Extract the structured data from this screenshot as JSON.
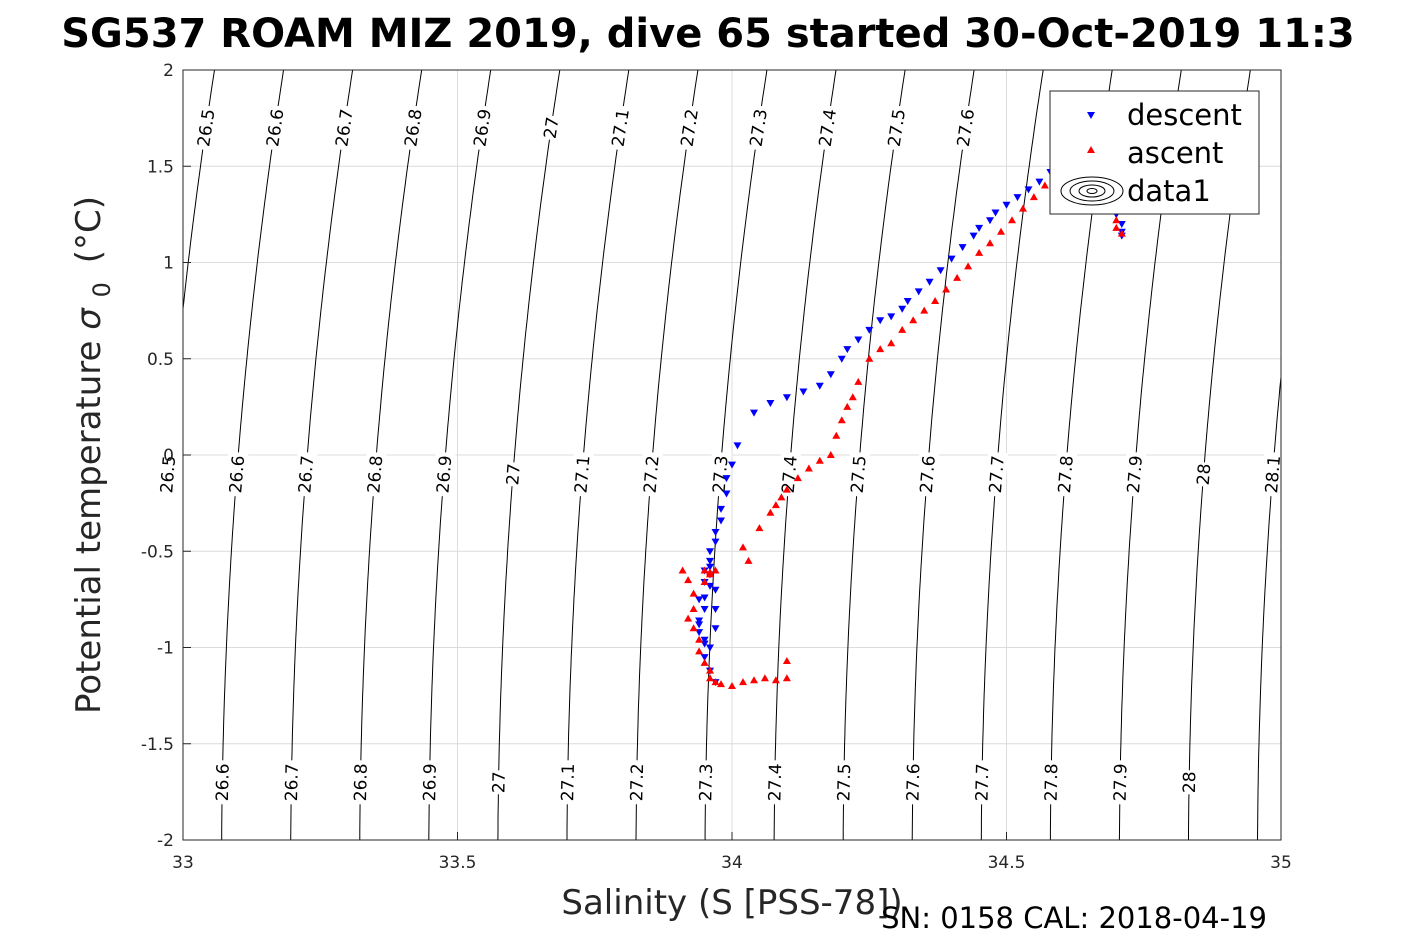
{
  "chart_data": {
    "type": "scatter",
    "title": "SG537 ROAM MIZ 2019, dive 65 started 30-Oct-2019 11:3",
    "xlabel": "Salinity (S [PSS-78])",
    "ylabel": "Potential temperature",
    "ylabel_units": "(°C)",
    "ylabel_symbol": "σ",
    "ylabel_subscript": "0",
    "footer": "SN: 0158  CAL: 2018-04-19",
    "xlim": [
      33,
      35
    ],
    "ylim": [
      -2,
      2
    ],
    "xticks": [
      33,
      33.5,
      34,
      34.5,
      35
    ],
    "xtick_labels": [
      "33",
      "33.5",
      "34",
      "34.5",
      "35"
    ],
    "yticks": [
      -2,
      -1.5,
      -1,
      -0.5,
      0,
      0.5,
      1,
      1.5,
      2
    ],
    "ytick_labels": [
      "-2",
      "-1.5",
      "-1",
      "-0.5",
      "0",
      "0.5",
      "1",
      "1.5",
      "2"
    ],
    "grid": true,
    "legend_position": "top-right",
    "legend": [
      "descent",
      "ascent",
      "data1"
    ],
    "colors": {
      "descent": "#0000ff",
      "ascent": "#ff0000",
      "contours": "#000000",
      "grid": "#dcdcdc"
    },
    "isopycnals": {
      "levels": [
        26.5,
        26.6,
        26.7,
        26.8,
        26.9,
        27.0,
        27.1,
        27.2,
        27.3,
        27.4,
        27.5,
        27.6,
        27.7,
        27.8,
        27.9,
        28.0,
        28.1
      ],
      "label_rows": [
        {
          "theta": 1.7,
          "labels": [
            "26.5",
            "26.6",
            "26.7",
            "26.8",
            "26.9",
            "27",
            "27.1",
            "27.2",
            "27.3",
            "27.4",
            "27.5",
            "27.6",
            "28"
          ]
        },
        {
          "theta": -0.1,
          "labels": [
            "26.5",
            "26.6",
            "26.7",
            "26.8",
            "26.9",
            "27",
            "27.1",
            "27.2",
            "27.3",
            "27.4",
            "27.5",
            "27.6",
            "27.7",
            "27.8",
            "27.9",
            "28",
            "28.1"
          ]
        },
        {
          "theta": -1.7,
          "labels": [
            "26.6",
            "26.7",
            "26.8",
            "26.9",
            "27",
            "27.1",
            "27.2",
            "27.3",
            "27.4",
            "27.5",
            "27.6",
            "27.7",
            "27.8",
            "27.9",
            "28"
          ]
        }
      ]
    },
    "series": [
      {
        "name": "descent",
        "marker": "triangle-down",
        "x": [
          33.97,
          33.96,
          33.95,
          33.95,
          33.94,
          33.94,
          33.95,
          33.95,
          33.96,
          33.96,
          33.96,
          33.97,
          33.97,
          33.97,
          33.96,
          33.95,
          33.94,
          33.94,
          33.95,
          33.95,
          33.96,
          33.96,
          33.97,
          33.97,
          33.98,
          33.98,
          33.99,
          33.99,
          34.0,
          34.01,
          34.04,
          34.07,
          34.1,
          34.13,
          34.16,
          34.18,
          34.2,
          34.21,
          34.23,
          34.25,
          34.27,
          34.29,
          34.31,
          34.32,
          34.34,
          34.36,
          34.38,
          34.4,
          34.42,
          34.44,
          34.45,
          34.47,
          34.48,
          34.5,
          34.52,
          34.54,
          34.56,
          34.58,
          34.59,
          34.6,
          34.61,
          34.62,
          34.63,
          34.64,
          34.65,
          34.66,
          34.67,
          34.68,
          34.69,
          34.7,
          34.71,
          34.71,
          34.71
        ],
        "y": [
          -1.18,
          -1.12,
          -1.05,
          -0.98,
          -0.92,
          -0.86,
          -0.8,
          -0.74,
          -0.68,
          -0.62,
          -0.58,
          -0.7,
          -0.8,
          -0.9,
          -1.0,
          -0.96,
          -0.88,
          -0.75,
          -0.66,
          -0.6,
          -0.55,
          -0.5,
          -0.45,
          -0.4,
          -0.34,
          -0.28,
          -0.2,
          -0.12,
          -0.05,
          0.05,
          0.22,
          0.27,
          0.3,
          0.33,
          0.36,
          0.42,
          0.5,
          0.55,
          0.6,
          0.65,
          0.7,
          0.72,
          0.76,
          0.8,
          0.85,
          0.9,
          0.96,
          1.02,
          1.08,
          1.14,
          1.18,
          1.22,
          1.26,
          1.3,
          1.34,
          1.38,
          1.42,
          1.47,
          1.51,
          1.54,
          1.56,
          1.58,
          1.56,
          1.52,
          1.48,
          1.44,
          1.4,
          1.35,
          1.3,
          1.25,
          1.2,
          1.16,
          1.14
        ]
      },
      {
        "name": "ascent",
        "marker": "triangle-up",
        "x": [
          33.91,
          33.92,
          33.93,
          33.93,
          33.92,
          33.93,
          33.94,
          33.94,
          33.95,
          33.96,
          33.96,
          33.97,
          33.98,
          34.0,
          34.02,
          34.04,
          34.06,
          34.08,
          34.1,
          34.1,
          33.96,
          33.95,
          33.95,
          33.96,
          33.97,
          34.02,
          34.03,
          34.05,
          34.07,
          34.08,
          34.09,
          34.1,
          34.12,
          34.14,
          34.16,
          34.18,
          34.19,
          34.2,
          34.21,
          34.22,
          34.23,
          34.25,
          34.27,
          34.29,
          34.31,
          34.33,
          34.35,
          34.37,
          34.39,
          34.41,
          34.43,
          34.45,
          34.47,
          34.49,
          34.51,
          34.53,
          34.55,
          34.57,
          34.59,
          34.61,
          34.62,
          34.64,
          34.66,
          34.68,
          34.7,
          34.7,
          34.71,
          34.71,
          34.7,
          34.7,
          34.71
        ],
        "y": [
          -0.6,
          -0.65,
          -0.72,
          -0.8,
          -0.85,
          -0.9,
          -0.96,
          -1.02,
          -1.08,
          -1.12,
          -1.16,
          -1.18,
          -1.19,
          -1.2,
          -1.18,
          -1.17,
          -1.16,
          -1.17,
          -1.16,
          -1.07,
          -0.62,
          -0.66,
          -0.6,
          -0.61,
          -0.6,
          -0.48,
          -0.55,
          -0.38,
          -0.3,
          -0.26,
          -0.22,
          -0.18,
          -0.12,
          -0.07,
          -0.03,
          0.0,
          0.1,
          0.18,
          0.25,
          0.3,
          0.38,
          0.5,
          0.55,
          0.58,
          0.65,
          0.7,
          0.75,
          0.8,
          0.86,
          0.92,
          0.98,
          1.05,
          1.1,
          1.16,
          1.22,
          1.28,
          1.34,
          1.4,
          1.46,
          1.52,
          1.56,
          1.6,
          1.62,
          1.58,
          1.52,
          1.44,
          1.36,
          1.28,
          1.22,
          1.18,
          1.15
        ]
      }
    ]
  }
}
